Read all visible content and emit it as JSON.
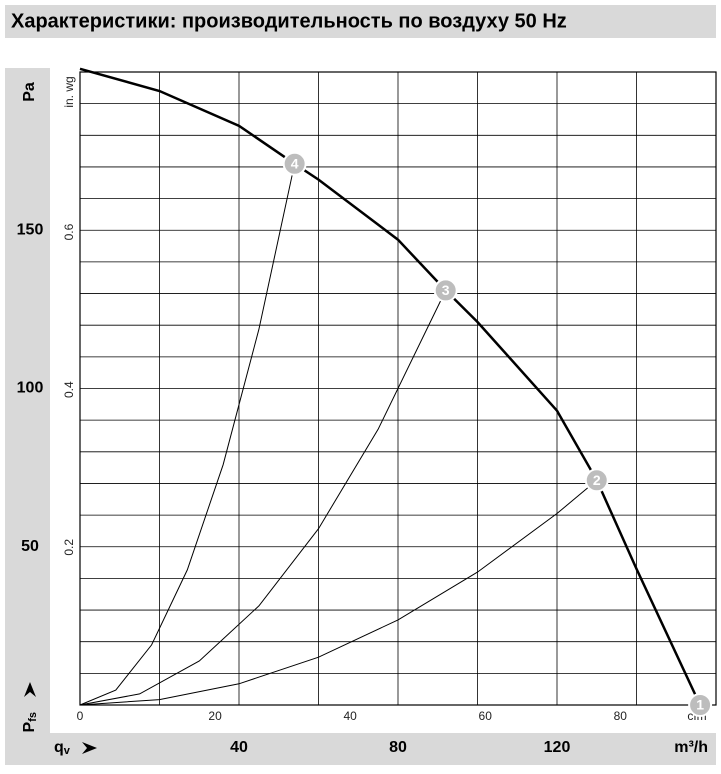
{
  "chart_data": {
    "type": "line",
    "title": "Характеристики: производительность по воздуху 50 Hz",
    "ylabel": "Pa",
    "y_quantity": "P",
    "y_quantity_sub": "fs",
    "xlabel": "m³/h",
    "x_quantity": "q",
    "x_quantity_sub": "v",
    "y2label": "in. wg",
    "x2label": "cfm",
    "xlim": [
      0,
      160
    ],
    "ylim": [
      0,
      200
    ],
    "xticks": [
      40,
      80,
      120
    ],
    "yticks": [
      50,
      100,
      150
    ],
    "x2lim": [
      0,
      94.17
    ],
    "x2ticks": [
      0,
      20,
      40,
      60,
      80
    ],
    "y2lim": [
      0,
      0.803
    ],
    "y2ticks": [
      0.2,
      0.4,
      0.6
    ],
    "grid_x": [
      20,
      40,
      60,
      80,
      100,
      120,
      140
    ],
    "grid_y": [
      10,
      20,
      30,
      40,
      50,
      60,
      70,
      80,
      90,
      100,
      110,
      120,
      130,
      140,
      150,
      160,
      170,
      180,
      190
    ],
    "series": [
      {
        "color": "#000000",
        "x": [
          0,
          20,
          40,
          54,
          60,
          80,
          92,
          100,
          120,
          130,
          140,
          156
        ],
        "values": [
          201,
          194,
          183,
          171,
          166,
          147,
          131,
          121,
          93,
          71,
          43,
          0
        ]
      },
      {
        "color": "#000000",
        "x": [
          0,
          20,
          40,
          60,
          80,
          100,
          120,
          130
        ],
        "values": [
          0,
          1.7,
          6.7,
          15.1,
          26.9,
          42.0,
          60.5,
          71
        ]
      },
      {
        "color": "#000000",
        "x": [
          0,
          15,
          30,
          45,
          60,
          75,
          92
        ],
        "values": [
          0,
          3.5,
          13.9,
          31.3,
          55.7,
          87.1,
          131
        ]
      },
      {
        "color": "#000000",
        "x": [
          0,
          9,
          18,
          27,
          36,
          45,
          54
        ],
        "values": [
          0,
          4.7,
          19.0,
          42.7,
          75.9,
          118.7,
          171
        ]
      }
    ],
    "marker_color": "#bdbdbd",
    "markers": [
      {
        "label": "1",
        "x": 156,
        "y": 0
      },
      {
        "label": "2",
        "x": 130,
        "y": 71
      },
      {
        "label": "3",
        "x": 92,
        "y": 131
      },
      {
        "label": "4",
        "x": 54,
        "y": 171
      }
    ]
  }
}
